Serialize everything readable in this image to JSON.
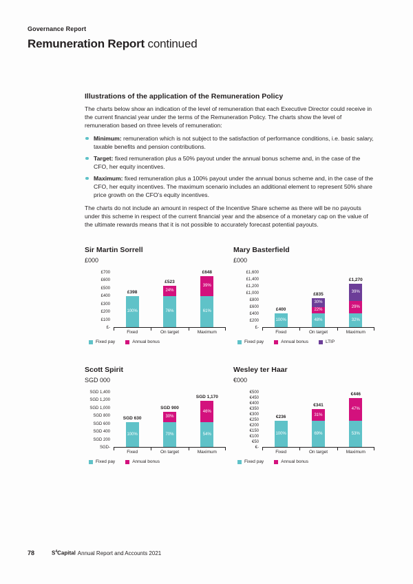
{
  "page": {
    "section_label": "Governance Report",
    "title_bold": "Remuneration Report",
    "title_cont": " continued"
  },
  "content": {
    "heading": "Illustrations of the application of the Remuneration Policy",
    "intro": "The charts below show an indication of the level of remuneration that each Executive Director could receive in the current financial year under the terms of the Remuneration Policy. The charts show the level of remuneration based on three levels of remuneration:",
    "bullets": [
      {
        "term": "Minimum:",
        "text": " remuneration which is not subject to the satisfaction of performance conditions, i.e. basic salary, taxable benefits and pension contributions."
      },
      {
        "term": "Target:",
        "text": " fixed remuneration plus a 50% payout under the annual bonus scheme and, in the case of the CFO, her equity incentives."
      },
      {
        "term": "Maximum:",
        "text": " fixed remuneration plus a 100% payout under the annual bonus scheme and, in the case of the CFO, her equity incentives. The maximum scenario includes an additional element to represent 50% share price growth on the CFO’s equity incentives."
      }
    ],
    "closing": "The charts do not include an amount in respect of the Incentive Share scheme as there will be no payouts under this scheme in respect of the current financial year and the absence of a monetary cap on the value of the ultimate rewards means that it is not possible to accurately forecast potential payouts."
  },
  "colors": {
    "fixed_pay": "#5fc2c8",
    "annual_bonus": "#d3117d",
    "ltip": "#6c3e98",
    "text": "#231f20"
  },
  "chart_data": [
    {
      "type": "bar",
      "stacked": true,
      "title": "Sir Martin Sorrell",
      "unit": "£000",
      "categories": [
        "Fixed",
        "On target",
        "Maximum"
      ],
      "series": [
        {
          "name": "Fixed pay",
          "color_key": "fixed_pay",
          "values": [
            398,
            398,
            398
          ],
          "pct_labels": [
            "100%",
            "76%",
            "61%"
          ]
        },
        {
          "name": "Annual bonus",
          "color_key": "annual_bonus",
          "values": [
            0,
            125,
            250
          ],
          "pct_labels": [
            "",
            "24%",
            "39%"
          ]
        }
      ],
      "totals": [
        "£398",
        "£523",
        "£648"
      ],
      "yticks": [
        "£700",
        "£600",
        "£500",
        "£400",
        "£300",
        "£200",
        "£100",
        "£-"
      ],
      "ymax": 700,
      "legend_position": "bottom",
      "grid": false
    },
    {
      "type": "bar",
      "stacked": true,
      "title": "Mary Basterfield",
      "unit": "£000",
      "categories": [
        "Fixed",
        "On target",
        "Maximum"
      ],
      "series": [
        {
          "name": "Fixed pay",
          "color_key": "fixed_pay",
          "values": [
            400,
            400,
            400
          ],
          "pct_labels": [
            "100%",
            "48%",
            "32%"
          ]
        },
        {
          "name": "Annual bonus",
          "color_key": "annual_bonus",
          "values": [
            0,
            185,
            370
          ],
          "pct_labels": [
            "",
            "22%",
            "29%"
          ]
        },
        {
          "name": "LTIP",
          "color_key": "ltip",
          "values": [
            0,
            250,
            500
          ],
          "pct_labels": [
            "",
            "30%",
            "39%"
          ]
        }
      ],
      "totals": [
        "£400",
        "£835",
        "£1,270"
      ],
      "yticks": [
        "£1,600",
        "£1,400",
        "£1,200",
        "£1,000",
        "£800",
        "£600",
        "£400",
        "£200",
        "£-"
      ],
      "ymax": 1600,
      "legend_position": "bottom",
      "grid": false
    },
    {
      "type": "bar",
      "stacked": true,
      "title": "Scott Spirit",
      "unit": "SGD 000",
      "categories": [
        "Fixed",
        "On target",
        "Maximum"
      ],
      "series": [
        {
          "name": "Fixed pay",
          "color_key": "fixed_pay",
          "values": [
            630,
            630,
            630
          ],
          "pct_labels": [
            "100%",
            "70%",
            "54%"
          ]
        },
        {
          "name": "Annual bonus",
          "color_key": "annual_bonus",
          "values": [
            0,
            270,
            540
          ],
          "pct_labels": [
            "",
            "30%",
            "46%"
          ]
        }
      ],
      "totals": [
        "SGD 630",
        "SGD 900",
        "SGD 1,170"
      ],
      "yticks": [
        "SGD 1,400",
        "SGD 1,200",
        "SGD 1,000",
        "SGD 800",
        "SGD 600",
        "SGD 400",
        "SGD 200",
        "SGD-"
      ],
      "ymax": 1400,
      "legend_position": "bottom",
      "grid": false
    },
    {
      "type": "bar",
      "stacked": true,
      "title": "Wesley ter Haar",
      "unit": "€000",
      "categories": [
        "Fixed",
        "On target",
        "Maximum"
      ],
      "series": [
        {
          "name": "Fixed pay",
          "color_key": "fixed_pay",
          "values": [
            236,
            236,
            236
          ],
          "pct_labels": [
            "100%",
            "69%",
            "53%"
          ]
        },
        {
          "name": "Annual bonus",
          "color_key": "annual_bonus",
          "values": [
            0,
            105,
            210
          ],
          "pct_labels": [
            "",
            "31%",
            "47%"
          ]
        }
      ],
      "totals": [
        "€236",
        "€341",
        "€446"
      ],
      "yticks": [
        "€500",
        "€450",
        "€400",
        "€350",
        "€300",
        "€250",
        "€200",
        "€150",
        "€100",
        "€50",
        "€-"
      ],
      "ymax": 500,
      "legend_position": "bottom",
      "grid": false
    }
  ],
  "footer": {
    "page_number": "78",
    "brand_s": "S",
    "brand_sup": "4",
    "brand_capital": "Capital",
    "text": "Annual Report and Accounts 2021"
  }
}
